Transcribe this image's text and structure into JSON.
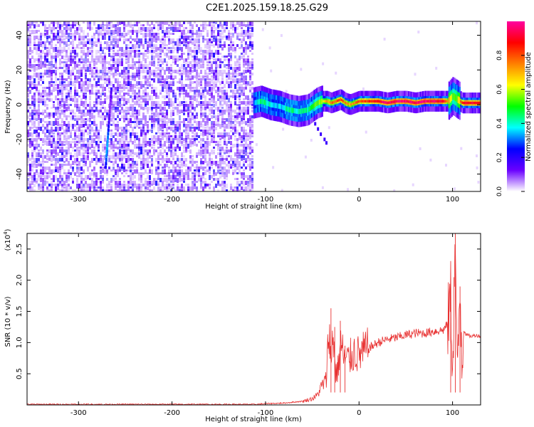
{
  "title": "C2E1.2025.159.18.25.G29",
  "chart_data": [
    {
      "type": "heatmap",
      "name": "spectrogram",
      "xlabel": "Height of straight line (km)",
      "ylabel": "Frequency (Hz)",
      "xlim": [
        -355,
        130
      ],
      "ylim": [
        -50,
        48
      ],
      "x_ticks": [
        -300,
        -200,
        -100,
        0,
        100
      ],
      "y_ticks": [
        -40,
        -20,
        0,
        20,
        40
      ],
      "colorbar": {
        "label": "Normalized spectral amplitude",
        "range": [
          0,
          1
        ],
        "ticks": [
          0.0,
          0.2,
          0.4,
          0.6,
          0.8
        ],
        "tick_labels": [
          "0.0",
          "0.2",
          "0.4",
          "0.6",
          "0.8"
        ],
        "colors": [
          "#ffffff",
          "#6a00ff",
          "#0000ff",
          "#00ffff",
          "#00ff00",
          "#ffff00",
          "#ff8000",
          "#ff0000",
          "#ff00a0"
        ]
      },
      "noise_region_x": [
        -355,
        -113
      ],
      "trace": {
        "x": [
          -113,
          -105,
          -95,
          -85,
          -75,
          -65,
          -55,
          -50,
          -45,
          -40,
          -35,
          -30,
          -25,
          -20,
          -15,
          -10,
          -5,
          0,
          10,
          20,
          30,
          40,
          50,
          60,
          70,
          80,
          90,
          95,
          100,
          105,
          110,
          115,
          120,
          130
        ],
        "frequency": [
          1,
          2,
          0,
          -1,
          -3,
          -4,
          -3,
          -1,
          1,
          2,
          2,
          1,
          2,
          3,
          1,
          0,
          1,
          2,
          2,
          2,
          1,
          2,
          2,
          1,
          2,
          2,
          2,
          2,
          5,
          3,
          1,
          1,
          1,
          1
        ],
        "amplitude": [
          0.3,
          0.45,
          0.4,
          0.35,
          0.45,
          0.4,
          0.45,
          0.5,
          0.55,
          0.6,
          0.7,
          0.75,
          0.8,
          0.8,
          0.75,
          0.7,
          0.75,
          0.8,
          0.85,
          0.9,
          0.95,
          0.95,
          0.95,
          0.95,
          0.95,
          0.95,
          0.9,
          0.7,
          0.5,
          0.6,
          0.85,
          0.9,
          0.9,
          0.9
        ]
      }
    },
    {
      "type": "line",
      "name": "snr",
      "xlabel": "Height of straight line (km)",
      "ylabel": "SNR (10 * v/v)",
      "y_scale_label_base": "(x10",
      "y_scale_label_exp": "4",
      "y_scale_label_end": ")",
      "xlim": [
        -355,
        130
      ],
      "ylim": [
        0,
        2.75
      ],
      "x_ticks": [
        -300,
        -200,
        -100,
        0,
        100
      ],
      "y_ticks": [
        0.5,
        1.0,
        1.5,
        2.0,
        2.5
      ],
      "y_tick_labels": [
        "0.5",
        "1.0",
        "1.5",
        "2.0",
        "2.5"
      ],
      "color": "#e83030",
      "x": [
        -355,
        -300,
        -250,
        -200,
        -150,
        -110,
        -100,
        -80,
        -60,
        -50,
        -45,
        -40,
        -35,
        -32,
        -30,
        -28,
        -25,
        -22,
        -20,
        -15,
        -10,
        -5,
        0,
        10,
        20,
        30,
        40,
        50,
        60,
        70,
        80,
        90,
        95,
        98,
        100,
        103,
        105,
        108,
        110,
        112,
        115,
        120,
        125,
        130
      ],
      "y": [
        0.01,
        0.01,
        0.01,
        0.01,
        0.01,
        0.01,
        0.02,
        0.03,
        0.06,
        0.1,
        0.15,
        0.3,
        0.4,
        1.35,
        0.55,
        1.25,
        0.5,
        0.6,
        1.0,
        0.7,
        0.75,
        0.85,
        0.8,
        0.9,
        1.0,
        1.05,
        1.08,
        1.12,
        1.15,
        1.15,
        1.18,
        1.2,
        1.3,
        1.8,
        0.6,
        2.7,
        0.3,
        1.9,
        0.8,
        1.2,
        1.12,
        1.1,
        1.12,
        1.1
      ],
      "spikes": [
        {
          "x": -30,
          "y": 1.55
        },
        {
          "x": -26,
          "y": 1.25
        },
        {
          "x": -20,
          "y": 1.35
        },
        {
          "x": -15,
          "y": 0.95
        },
        {
          "x": 98,
          "y": 2.0
        },
        {
          "x": 103,
          "y": 2.75
        },
        {
          "x": 108,
          "y": 1.9
        }
      ]
    }
  ]
}
